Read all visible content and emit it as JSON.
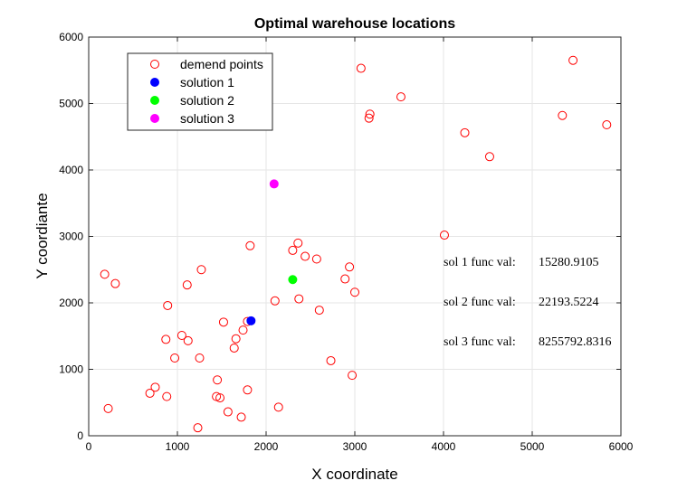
{
  "chart_data": {
    "type": "scatter",
    "title": "Optimal warehouse locations",
    "xlabel": "X coordinate",
    "ylabel": "Y coordiante",
    "xlim": [
      0,
      6000
    ],
    "ylim": [
      0,
      6000
    ],
    "xticks": [
      0,
      1000,
      2000,
      3000,
      4000,
      5000,
      6000
    ],
    "yticks": [
      0,
      1000,
      2000,
      3000,
      4000,
      5000,
      6000
    ],
    "grid": true,
    "legend_position": "top-left",
    "series": [
      {
        "name": "demend points",
        "marker": "open-circle",
        "color": "#ff0000",
        "points": [
          [
            3070,
            5530
          ],
          [
            3520,
            5100
          ],
          [
            3170,
            4840
          ],
          [
            3160,
            4780
          ],
          [
            4240,
            4560
          ],
          [
            4520,
            4200
          ],
          [
            5460,
            5650
          ],
          [
            5340,
            4820
          ],
          [
            5840,
            4680
          ],
          [
            4010,
            3020
          ],
          [
            180,
            2430
          ],
          [
            300,
            2290
          ],
          [
            1270,
            2500
          ],
          [
            1110,
            2270
          ],
          [
            890,
            1960
          ],
          [
            1820,
            2860
          ],
          [
            2360,
            2900
          ],
          [
            2300,
            2790
          ],
          [
            2440,
            2700
          ],
          [
            2570,
            2660
          ],
          [
            2940,
            2540
          ],
          [
            2890,
            2360
          ],
          [
            3000,
            2160
          ],
          [
            2100,
            2030
          ],
          [
            2370,
            2060
          ],
          [
            2600,
            1890
          ],
          [
            1520,
            1710
          ],
          [
            1790,
            1720
          ],
          [
            1740,
            1590
          ],
          [
            1660,
            1460
          ],
          [
            1640,
            1320
          ],
          [
            1050,
            1510
          ],
          [
            1120,
            1430
          ],
          [
            870,
            1450
          ],
          [
            970,
            1170
          ],
          [
            1250,
            1170
          ],
          [
            750,
            730
          ],
          [
            690,
            640
          ],
          [
            880,
            590
          ],
          [
            1450,
            840
          ],
          [
            1440,
            590
          ],
          [
            1480,
            570
          ],
          [
            1790,
            690
          ],
          [
            2730,
            1130
          ],
          [
            2970,
            910
          ],
          [
            1570,
            360
          ],
          [
            1720,
            280
          ],
          [
            2140,
            430
          ],
          [
            1230,
            120
          ],
          [
            220,
            410
          ]
        ]
      },
      {
        "name": "solution 1",
        "marker": "filled-circle",
        "color": "#0000ff",
        "points": [
          [
            1830,
            1730
          ]
        ]
      },
      {
        "name": "solution 2",
        "marker": "filled-circle",
        "color": "#00ff00",
        "points": [
          [
            2300,
            2350
          ]
        ]
      },
      {
        "name": "solution 3",
        "marker": "filled-circle",
        "color": "#ff00ff",
        "points": [
          [
            2090,
            3790
          ]
        ]
      }
    ],
    "annotations": [
      {
        "label": "sol 1 func val:",
        "value": "15280.9105",
        "x": 4000,
        "y": 2560
      },
      {
        "label": "sol 2 func val:",
        "value": "22193.5224",
        "x": 4000,
        "y": 1960
      },
      {
        "label": "sol 3 func val:",
        "value": "8255792.8316",
        "x": 4000,
        "y": 1360
      }
    ]
  }
}
